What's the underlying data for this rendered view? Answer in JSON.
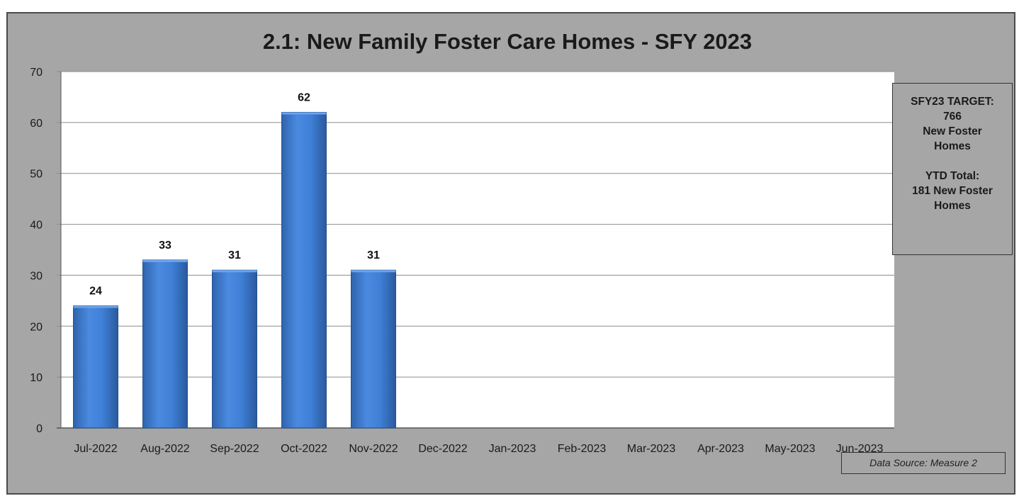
{
  "chart_data": {
    "type": "bar",
    "title": "2.1: New Family Foster Care Homes - SFY 2023",
    "xlabel": "",
    "ylabel": "",
    "ylim": [
      0,
      70
    ],
    "yticks": [
      0,
      10,
      20,
      30,
      40,
      50,
      60,
      70
    ],
    "grid": true,
    "categories": [
      "Jul-2022",
      "Aug-2022",
      "Sep-2022",
      "Oct-2022",
      "Nov-2022",
      "Dec-2022",
      "Jan-2023",
      "Feb-2023",
      "Mar-2023",
      "Apr-2023",
      "May-2023",
      "Jun-2023"
    ],
    "values": [
      24,
      33,
      31,
      62,
      31,
      null,
      null,
      null,
      null,
      null,
      null,
      null
    ],
    "data_labels": [
      "24",
      "33",
      "31",
      "62",
      "31",
      "",
      "",
      "",
      "",
      "",
      "",
      ""
    ],
    "bar_color": "#3a78c9",
    "plot_background": "#ffffff",
    "chart_background": "#a6a6a6"
  },
  "target_box": {
    "line1": "SFY23 TARGET:",
    "line2": "766",
    "line3": "New Foster",
    "line4": "Homes",
    "line5": "YTD Total:",
    "line6": "181 New Foster",
    "line7": "Homes"
  },
  "source_note": "Data Source: Measure 2"
}
